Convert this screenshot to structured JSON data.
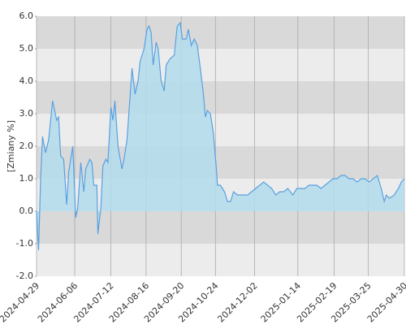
{
  "chart_data": {
    "type": "area",
    "y_label": "[Zmiany %]",
    "x": [
      "2024-04-29",
      "2024-05-01",
      "2024-05-03",
      "2024-05-05",
      "2024-05-08",
      "2024-05-11",
      "2024-05-15",
      "2024-05-19",
      "2024-05-21",
      "2024-05-23",
      "2024-05-26",
      "2024-05-29",
      "2024-05-31",
      "2024-06-04",
      "2024-06-07",
      "2024-06-09",
      "2024-06-12",
      "2024-06-15",
      "2024-06-17",
      "2024-06-21",
      "2024-06-23",
      "2024-06-25",
      "2024-06-28",
      "2024-06-29",
      "2024-07-02",
      "2024-07-04",
      "2024-07-07",
      "2024-07-09",
      "2024-07-12",
      "2024-07-14",
      "2024-07-16",
      "2024-07-19",
      "2024-07-23",
      "2024-07-25",
      "2024-07-28",
      "2024-07-31",
      "2024-08-02",
      "2024-08-05",
      "2024-08-08",
      "2024-08-10",
      "2024-08-14",
      "2024-08-17",
      "2024-08-19",
      "2024-08-21",
      "2024-08-23",
      "2024-08-26",
      "2024-08-28",
      "2024-08-31",
      "2024-09-03",
      "2024-09-05",
      "2024-09-09",
      "2024-09-13",
      "2024-09-16",
      "2024-09-19",
      "2024-09-21",
      "2024-09-25",
      "2024-09-27",
      "2024-09-30",
      "2024-10-03",
      "2024-10-06",
      "2024-10-09",
      "2024-10-12",
      "2024-10-14",
      "2024-10-16",
      "2024-10-19",
      "2024-10-22",
      "2024-10-25",
      "2024-10-26",
      "2024-10-29",
      "2024-11-02",
      "2024-11-05",
      "2024-11-08",
      "2024-11-11",
      "2024-11-15",
      "2024-11-18",
      "2024-11-21",
      "2024-11-25",
      "2024-11-29",
      "2024-12-03",
      "2024-12-07",
      "2024-12-11",
      "2024-12-15",
      "2024-12-19",
      "2024-12-23",
      "2024-12-27",
      "2024-12-31",
      "2025-01-04",
      "2025-01-09",
      "2025-01-13",
      "2025-01-17",
      "2025-01-21",
      "2025-01-25",
      "2025-01-29",
      "2025-02-02",
      "2025-02-06",
      "2025-02-10",
      "2025-02-14",
      "2025-02-18",
      "2025-02-22",
      "2025-02-26",
      "2025-03-02",
      "2025-03-06",
      "2025-03-10",
      "2025-03-14",
      "2025-03-18",
      "2025-03-22",
      "2025-03-26",
      "2025-03-30",
      "2025-04-03",
      "2025-04-07",
      "2025-04-10",
      "2025-04-12",
      "2025-04-15",
      "2025-04-20",
      "2025-04-24",
      "2025-04-27",
      "2025-04-30"
    ],
    "series": [
      {
        "color": "#5aa0e0",
        "fill": "#b3dcec",
        "values": [
          0.0,
          -1.2,
          1.0,
          2.3,
          1.8,
          2.2,
          3.4,
          2.8,
          2.9,
          1.7,
          1.6,
          0.2,
          1.2,
          2.0,
          -0.2,
          0.1,
          1.5,
          0.6,
          1.3,
          1.6,
          1.5,
          0.8,
          0.8,
          -0.7,
          0.1,
          1.4,
          1.6,
          1.5,
          3.2,
          2.8,
          3.4,
          2.0,
          1.3,
          1.6,
          2.2,
          3.5,
          4.4,
          3.6,
          4.0,
          4.6,
          5.0,
          5.6,
          5.7,
          5.5,
          4.5,
          5.2,
          5.0,
          4.0,
          3.7,
          4.5,
          4.7,
          4.8,
          5.7,
          5.8,
          5.3,
          5.3,
          5.6,
          5.1,
          5.3,
          5.1,
          4.4,
          3.6,
          2.9,
          3.1,
          3.0,
          2.4,
          1.3,
          0.8,
          0.8,
          0.6,
          0.3,
          0.3,
          0.6,
          0.5,
          0.5,
          0.5,
          0.5,
          0.6,
          0.7,
          0.8,
          0.9,
          0.8,
          0.7,
          0.5,
          0.6,
          0.6,
          0.7,
          0.5,
          0.7,
          0.7,
          0.7,
          0.8,
          0.8,
          0.8,
          0.7,
          0.8,
          0.9,
          1.0,
          1.0,
          1.1,
          1.1,
          1.0,
          1.0,
          0.9,
          1.0,
          1.0,
          0.9,
          1.0,
          1.1,
          0.7,
          0.3,
          0.5,
          0.4,
          0.5,
          0.7,
          0.9,
          1.0
        ]
      }
    ],
    "xlim": [
      "2024-04-29",
      "2025-04-30"
    ],
    "xticks": [
      "2024-04-29",
      "2024-06-06",
      "2024-07-12",
      "2024-08-16",
      "2024-09-20",
      "2024-10-24",
      "2024-12-02",
      "2025-01-14",
      "2025-02-19",
      "2025-03-25",
      "2025-04-30"
    ],
    "ylim": [
      -2,
      6
    ],
    "yticks": [
      {
        "value": -2,
        "label": "-2.0"
      },
      {
        "value": -1,
        "label": "-1.0"
      },
      {
        "value": 0,
        "label": "0.0"
      },
      {
        "value": 1,
        "label": "1.0"
      },
      {
        "value": 2,
        "label": "2.0"
      },
      {
        "value": 3,
        "label": "3.0"
      },
      {
        "value": 4,
        "label": "4.0"
      },
      {
        "value": 5,
        "label": "5.0"
      },
      {
        "value": 6,
        "label": "6.0"
      }
    ],
    "bands": [
      "#ececec",
      "#d9d9d9"
    ],
    "grid": true
  }
}
